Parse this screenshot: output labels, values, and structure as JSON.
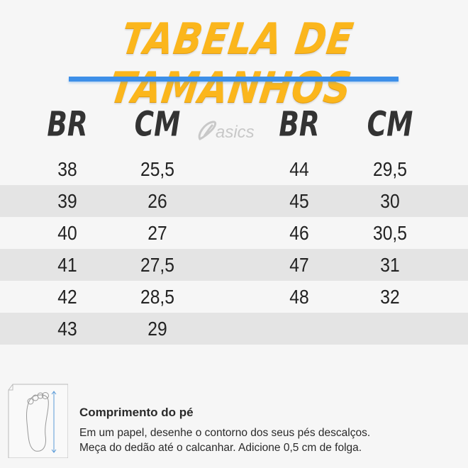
{
  "title": "TABELA DE TAMANHOS",
  "colors": {
    "title": "#fbb61c",
    "underline": "#3d8fe8",
    "row_shade": "#e4e4e4",
    "logo": "#c8c8c8"
  },
  "headers": {
    "left_br": "BR",
    "left_cm": "CM",
    "right_br": "BR",
    "right_cm": "CM"
  },
  "brand_logo": "asics",
  "rows": [
    {
      "br1": "38",
      "cm1": "25,5",
      "br2": "44",
      "cm2": "29,5"
    },
    {
      "br1": "39",
      "cm1": "26",
      "br2": "45",
      "cm2": "30"
    },
    {
      "br1": "40",
      "cm1": "27",
      "br2": "46",
      "cm2": "30,5"
    },
    {
      "br1": "41",
      "cm1": "27,5",
      "br2": "47",
      "cm2": "31"
    },
    {
      "br1": "42",
      "cm1": "28,5",
      "br2": "48",
      "cm2": "32"
    },
    {
      "br1": "43",
      "cm1": "29",
      "br2": "",
      "cm2": ""
    }
  ],
  "footer": {
    "icon": "foot-measure-icon",
    "title": "Comprimento do pé",
    "line1": "Em um papel, desenhe o contorno dos seus pés descalços.",
    "line2": "Meça do dedão até o calcanhar. Adicione 0,5 cm de folga."
  }
}
